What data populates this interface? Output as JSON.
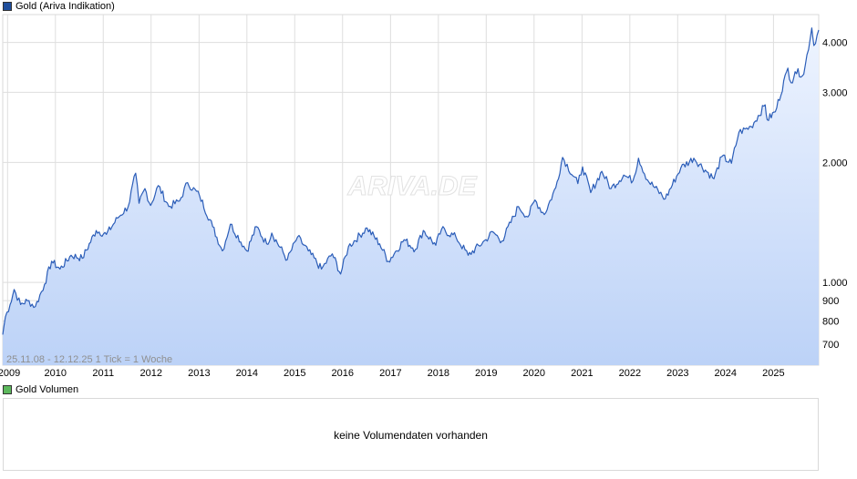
{
  "legend": {
    "price_label": "Gold (Ariva Indikation)",
    "price_color": "#1f4e9c",
    "volume_label": "Gold Volumen",
    "volume_color": "#5cb85c"
  },
  "watermark": "ARIVA.DE",
  "info_text": "25.11.08 - 12.12.25   1 Tick = 1 Woche",
  "volume_panel": {
    "message": "keine Volumendaten vorhanden"
  },
  "chart_data": {
    "type": "area",
    "title": "Gold (Ariva Indikation)",
    "xlabel": "",
    "ylabel": "",
    "y_scale": "log",
    "ylim": [
      620,
      4700
    ],
    "xlim": [
      "2008-11-25",
      "2025-12-12"
    ],
    "grid": true,
    "legend_position": "top-left",
    "line_color": "#2b5db8",
    "fill_top_color": "#eef4ff",
    "fill_bottom_color": "#bcd2f7",
    "y_ticks": [
      {
        "value": 700,
        "label": "700"
      },
      {
        "value": 800,
        "label": "800"
      },
      {
        "value": 900,
        "label": "900"
      },
      {
        "value": 1000,
        "label": "1.000"
      },
      {
        "value": 2000,
        "label": "2.000"
      },
      {
        "value": 3000,
        "label": "3.000"
      },
      {
        "value": 4000,
        "label": "4.000"
      }
    ],
    "x_ticks": [
      "2009",
      "2010",
      "2011",
      "2012",
      "2013",
      "2014",
      "2015",
      "2016",
      "2017",
      "2018",
      "2019",
      "2020",
      "2021",
      "2022",
      "2023",
      "2024",
      "2025"
    ],
    "series": [
      {
        "name": "Gold (Ariva Indikation)",
        "points": [
          [
            "2008-11-25",
            740
          ],
          [
            "2008-12-15",
            820
          ],
          [
            "2009-01-20",
            880
          ],
          [
            "2009-02-20",
            960
          ],
          [
            "2009-04-10",
            880
          ],
          [
            "2009-06-01",
            900
          ],
          [
            "2009-08-01",
            870
          ],
          [
            "2009-10-10",
            990
          ],
          [
            "2009-12-03",
            1130
          ],
          [
            "2010-02-05",
            1080
          ],
          [
            "2010-05-01",
            1170
          ],
          [
            "2010-07-25",
            1150
          ],
          [
            "2010-11-08",
            1350
          ],
          [
            "2011-01-25",
            1320
          ],
          [
            "2011-04-20",
            1450
          ],
          [
            "2011-07-10",
            1550
          ],
          [
            "2011-09-05",
            1880
          ],
          [
            "2011-10-01",
            1580
          ],
          [
            "2011-11-15",
            1720
          ],
          [
            "2011-12-28",
            1560
          ],
          [
            "2012-02-25",
            1750
          ],
          [
            "2012-05-15",
            1550
          ],
          [
            "2012-08-05",
            1600
          ],
          [
            "2012-10-05",
            1780
          ],
          [
            "2013-01-05",
            1650
          ],
          [
            "2013-04-15",
            1380
          ],
          [
            "2013-06-28",
            1200
          ],
          [
            "2013-08-28",
            1400
          ],
          [
            "2013-12-31",
            1200
          ],
          [
            "2014-03-15",
            1380
          ],
          [
            "2014-06-01",
            1250
          ],
          [
            "2014-07-10",
            1330
          ],
          [
            "2014-11-05",
            1140
          ],
          [
            "2015-01-22",
            1300
          ],
          [
            "2015-04-15",
            1200
          ],
          [
            "2015-07-24",
            1080
          ],
          [
            "2015-10-15",
            1180
          ],
          [
            "2015-12-17",
            1050
          ],
          [
            "2016-02-15",
            1230
          ],
          [
            "2016-07-06",
            1370
          ],
          [
            "2016-10-10",
            1250
          ],
          [
            "2016-12-15",
            1130
          ],
          [
            "2017-04-15",
            1280
          ],
          [
            "2017-07-10",
            1210
          ],
          [
            "2017-09-08",
            1350
          ],
          [
            "2017-12-12",
            1240
          ],
          [
            "2018-01-25",
            1360
          ],
          [
            "2018-05-15",
            1300
          ],
          [
            "2018-08-16",
            1170
          ],
          [
            "2018-12-30",
            1280
          ],
          [
            "2019-02-20",
            1340
          ],
          [
            "2019-05-01",
            1270
          ],
          [
            "2019-09-04",
            1550
          ],
          [
            "2019-11-15",
            1460
          ],
          [
            "2020-01-08",
            1610
          ],
          [
            "2020-03-19",
            1480
          ],
          [
            "2020-06-15",
            1730
          ],
          [
            "2020-08-06",
            2060
          ],
          [
            "2020-11-30",
            1770
          ],
          [
            "2021-01-05",
            1950
          ],
          [
            "2021-03-08",
            1680
          ],
          [
            "2021-06-01",
            1900
          ],
          [
            "2021-08-10",
            1720
          ],
          [
            "2021-11-15",
            1860
          ],
          [
            "2022-01-25",
            1800
          ],
          [
            "2022-03-08",
            2050
          ],
          [
            "2022-05-15",
            1810
          ],
          [
            "2022-09-28",
            1620
          ],
          [
            "2023-01-25",
            1940
          ],
          [
            "2023-05-04",
            2050
          ],
          [
            "2023-10-05",
            1820
          ],
          [
            "2023-12-04",
            2070
          ],
          [
            "2024-02-15",
            1990
          ],
          [
            "2024-04-12",
            2380
          ],
          [
            "2024-07-15",
            2460
          ],
          [
            "2024-10-30",
            2790
          ],
          [
            "2024-11-14",
            2560
          ],
          [
            "2025-01-15",
            2680
          ],
          [
            "2025-04-21",
            3450
          ],
          [
            "2025-05-15",
            3170
          ],
          [
            "2025-06-15",
            3380
          ],
          [
            "2025-08-20",
            3330
          ],
          [
            "2025-10-20",
            4350
          ],
          [
            "2025-11-05",
            3930
          ],
          [
            "2025-12-12",
            4300
          ]
        ]
      }
    ]
  }
}
